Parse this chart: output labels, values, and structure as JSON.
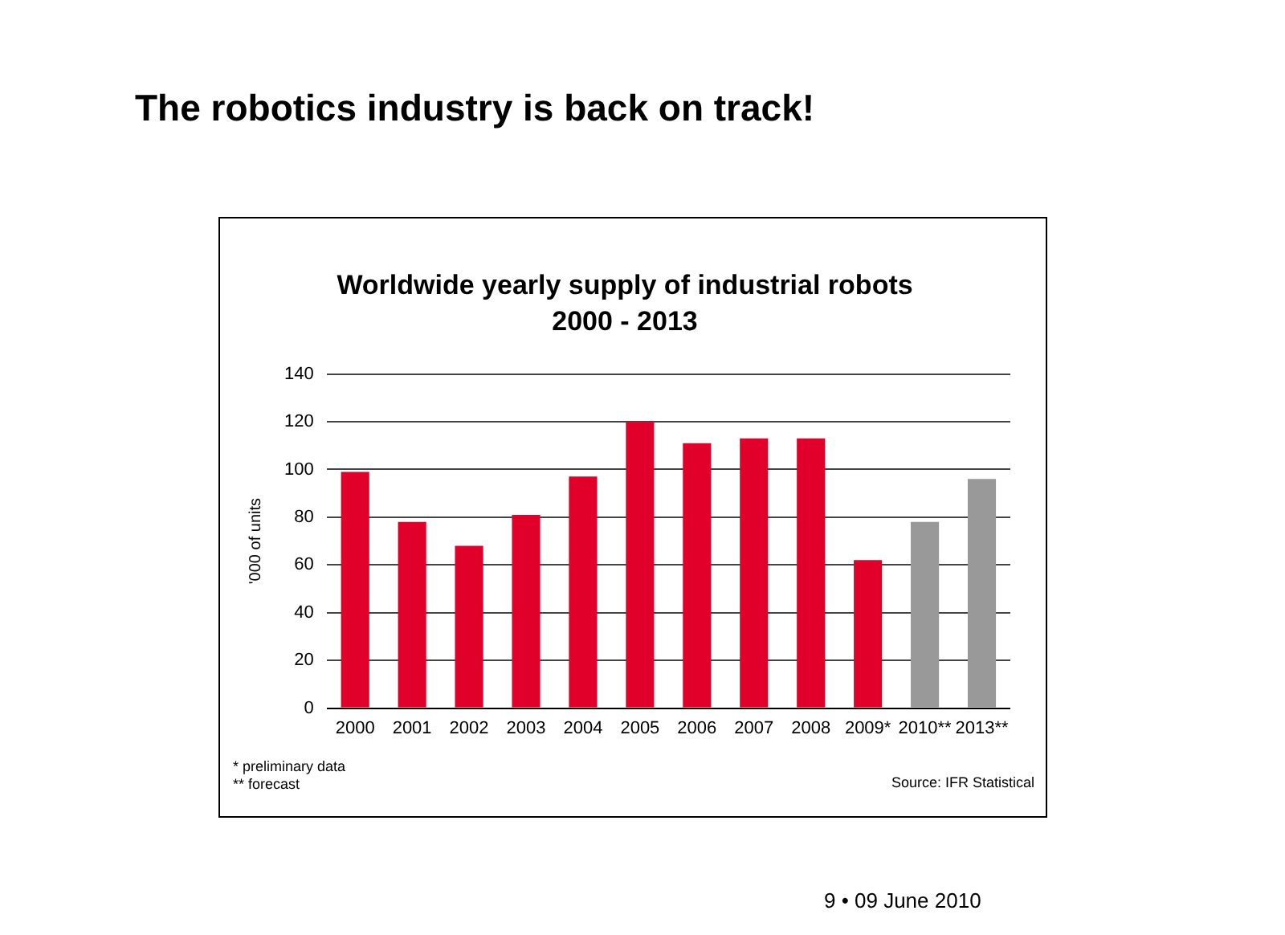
{
  "chart_data": {
    "type": "bar",
    "title": "Worldwide yearly supply of industrial robots",
    "subtitle": "2000 - 2013",
    "ylabel": "'000 of units",
    "categories": [
      "2000",
      "2001",
      "2002",
      "2003",
      "2004",
      "2005",
      "2006",
      "2007",
      "2008",
      "2009*",
      "2010**",
      "2013**"
    ],
    "values": [
      99,
      78,
      68,
      81,
      97,
      120,
      111,
      113,
      113,
      62,
      78,
      96
    ],
    "colors": [
      "#e0002a",
      "#e0002a",
      "#e0002a",
      "#e0002a",
      "#e0002a",
      "#e0002a",
      "#e0002a",
      "#e0002a",
      "#e0002a",
      "#e0002a",
      "#999999",
      "#999999"
    ],
    "ylim": [
      0,
      140
    ],
    "yticks": [
      0,
      20,
      40,
      60,
      80,
      100,
      120,
      140
    ],
    "grid": "y",
    "legend": false,
    "annotations": [
      "The robotics industry is back on track!",
      "* preliminary data",
      "** forecast",
      "Source: IFR Statistical",
      "9 • 09 June 2010"
    ]
  }
}
